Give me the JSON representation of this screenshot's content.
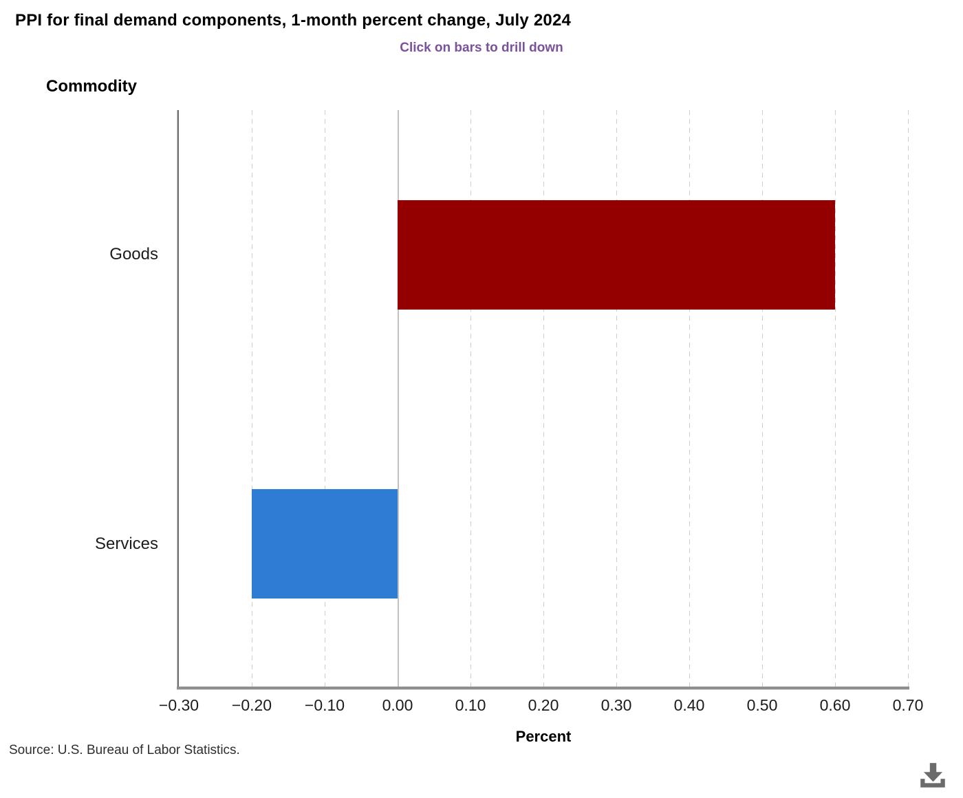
{
  "header": {
    "title": "PPI for final demand components, 1-month percent change, July 2024",
    "subtitle": "Click on bars to drill down"
  },
  "chart_data": {
    "type": "bar",
    "orientation": "horizontal",
    "title": "PPI for final demand components, 1-month percent change, July 2024",
    "subtitle": "Click on bars to drill down",
    "ylabel": "Commodity",
    "xlabel": "Percent",
    "categories": [
      "Goods",
      "Services"
    ],
    "values": [
      0.6,
      -0.2
    ],
    "bar_colors": [
      "#940000",
      "#2e7cd4"
    ],
    "xlim": [
      -0.3,
      0.7
    ],
    "xticks": [
      {
        "value": -0.3,
        "label": "−0.30"
      },
      {
        "value": -0.2,
        "label": "−0.20"
      },
      {
        "value": -0.1,
        "label": "−0.10"
      },
      {
        "value": 0.0,
        "label": "0.00"
      },
      {
        "value": 0.1,
        "label": "0.10"
      },
      {
        "value": 0.2,
        "label": "0.20"
      },
      {
        "value": 0.3,
        "label": "0.30"
      },
      {
        "value": 0.4,
        "label": "0.40"
      },
      {
        "value": 0.5,
        "label": "0.50"
      },
      {
        "value": 0.6,
        "label": "0.60"
      },
      {
        "value": 0.7,
        "label": "0.70"
      }
    ],
    "grid": "vertical-dashed",
    "zero_line": true,
    "legend": "none"
  },
  "footer": {
    "source": "Source: U.S. Bureau of Labor Statistics."
  },
  "colors": {
    "goods_bar": "#940000",
    "services_bar": "#2e7cd4",
    "subtitle_text": "#7a529a",
    "axis_line": "#8f8f8f",
    "gridline": "#cdcdcd",
    "download_icon": "#6b6b6b"
  }
}
